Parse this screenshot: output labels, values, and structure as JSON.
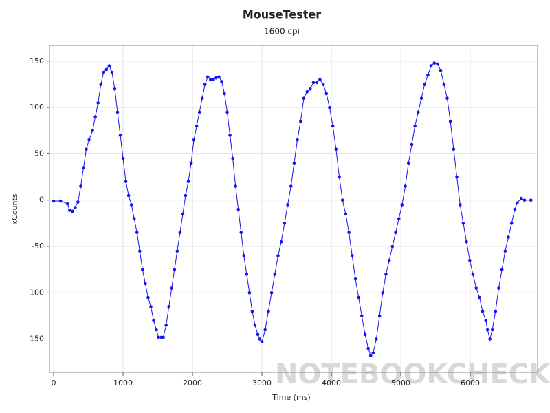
{
  "chart_data": {
    "type": "scatter",
    "title": "MouseTester",
    "subtitle": "1600 cpi",
    "x_label": "Time (ms)",
    "y_label": "xCounts",
    "watermark": "NOTEBOOKCHECK",
    "connect": true,
    "grid": true,
    "xlim": [
      -60,
      6970
    ],
    "ylim": [
      -186,
      167
    ],
    "xticks": [
      0,
      1000,
      2000,
      3000,
      4000,
      5000,
      6000
    ],
    "yticks": [
      -150,
      -100,
      -50,
      0,
      50,
      100,
      150
    ],
    "series": [
      {
        "color": "#1414f0",
        "x": [
          0,
          100,
          200,
          230,
          270,
          310,
          350,
          390,
          430,
          470,
          510,
          560,
          600,
          640,
          680,
          720,
          760,
          800,
          840,
          880,
          920,
          960,
          1000,
          1040,
          1080,
          1120,
          1160,
          1200,
          1240,
          1280,
          1320,
          1360,
          1400,
          1440,
          1480,
          1510,
          1550,
          1580,
          1620,
          1660,
          1700,
          1740,
          1780,
          1820,
          1860,
          1900,
          1940,
          1980,
          2020,
          2060,
          2100,
          2140,
          2180,
          2220,
          2260,
          2300,
          2340,
          2380,
          2420,
          2460,
          2500,
          2540,
          2580,
          2620,
          2660,
          2700,
          2740,
          2780,
          2820,
          2860,
          2900,
          2940,
          2970,
          3000,
          3046,
          3093,
          3139,
          3186,
          3232,
          3278,
          3325,
          3371,
          3418,
          3464,
          3510,
          3557,
          3603,
          3650,
          3696,
          3742,
          3789,
          3835,
          3882,
          3928,
          3974,
          4021,
          4067,
          4114,
          4160,
          4206,
          4253,
          4299,
          4346,
          4392,
          4438,
          4485,
          4531,
          4566,
          4601,
          4647,
          4694,
          4740,
          4786,
          4833,
          4879,
          4926,
          4972,
          5018,
          5065,
          5111,
          5158,
          5204,
          5250,
          5297,
          5343,
          5390,
          5436,
          5482,
          5529,
          5575,
          5622,
          5668,
          5714,
          5761,
          5807,
          5854,
          5900,
          5946,
          5993,
          6039,
          6086,
          6132,
          6178,
          6225,
          6248,
          6283,
          6318,
          6364,
          6410,
          6457,
          6503,
          6550,
          6596,
          6642,
          6677,
          6735,
          6782,
          6874
        ],
        "values": [
          -1,
          -1,
          -4,
          -11,
          -12,
          -8,
          -2,
          15,
          35,
          55,
          65,
          75,
          90,
          105,
          125,
          138,
          141,
          145,
          138,
          120,
          95,
          70,
          45,
          20,
          5,
          -5,
          -20,
          -35,
          -55,
          -75,
          -90,
          -105,
          -115,
          -130,
          -140,
          -148,
          -148,
          -148,
          -135,
          -115,
          -95,
          -75,
          -55,
          -35,
          -15,
          5,
          20,
          40,
          65,
          80,
          95,
          110,
          125,
          133,
          130,
          130,
          132,
          133,
          128,
          115,
          95,
          70,
          45,
          15,
          -10,
          -35,
          -60,
          -80,
          -100,
          -120,
          -135,
          -145,
          -150,
          -153,
          -140,
          -120,
          -100,
          -80,
          -60,
          -45,
          -25,
          -5,
          15,
          40,
          65,
          85,
          110,
          117,
          120,
          127,
          127,
          130,
          125,
          115,
          100,
          80,
          55,
          25,
          0,
          -15,
          -35,
          -60,
          -85,
          -105,
          -125,
          -145,
          -160,
          -168,
          -165,
          -150,
          -125,
          -100,
          -80,
          -65,
          -50,
          -35,
          -20,
          -5,
          15,
          40,
          60,
          80,
          95,
          110,
          125,
          135,
          145,
          148,
          147,
          140,
          125,
          110,
          85,
          55,
          25,
          -5,
          -25,
          -45,
          -65,
          -80,
          -95,
          -105,
          -120,
          -130,
          -140,
          -150,
          -140,
          -120,
          -95,
          -75,
          -55,
          -40,
          -25,
          -10,
          -3,
          2,
          0,
          0
        ]
      }
    ]
  }
}
